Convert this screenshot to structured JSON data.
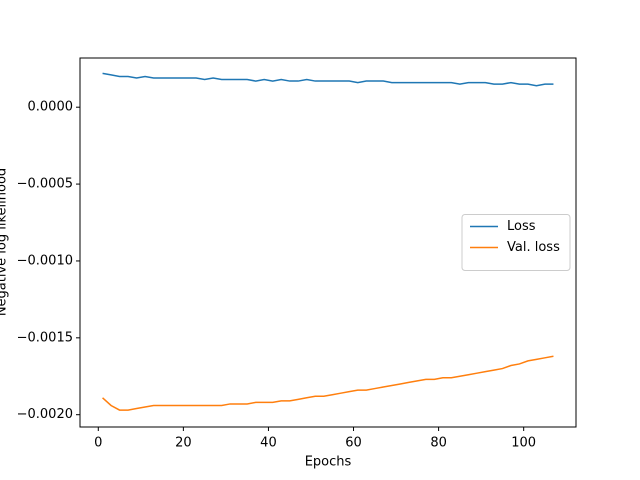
{
  "chart_data": {
    "type": "line",
    "xlabel": "Epochs",
    "ylabel": "Negative log likelihood",
    "x": [
      1,
      3,
      5,
      7,
      9,
      11,
      13,
      15,
      17,
      19,
      21,
      23,
      25,
      27,
      29,
      31,
      33,
      35,
      37,
      39,
      41,
      43,
      45,
      47,
      49,
      51,
      53,
      55,
      57,
      59,
      61,
      63,
      65,
      67,
      69,
      71,
      73,
      75,
      77,
      79,
      81,
      83,
      85,
      87,
      89,
      91,
      93,
      95,
      97,
      99,
      101,
      103,
      105,
      107
    ],
    "series": [
      {
        "name": "Loss",
        "color": "#1f77b4",
        "values": [
          0.00022,
          0.00021,
          0.0002,
          0.0002,
          0.00019,
          0.0002,
          0.00019,
          0.00019,
          0.00019,
          0.00019,
          0.00019,
          0.00019,
          0.00018,
          0.00019,
          0.00018,
          0.00018,
          0.00018,
          0.00018,
          0.00017,
          0.00018,
          0.00017,
          0.00018,
          0.00017,
          0.00017,
          0.00018,
          0.00017,
          0.00017,
          0.00017,
          0.00017,
          0.00017,
          0.00016,
          0.00017,
          0.00017,
          0.00017,
          0.00016,
          0.00016,
          0.00016,
          0.00016,
          0.00016,
          0.00016,
          0.00016,
          0.00016,
          0.00015,
          0.00016,
          0.00016,
          0.00016,
          0.00015,
          0.00015,
          0.00016,
          0.00015,
          0.00015,
          0.00014,
          0.00015,
          0.00015
        ]
      },
      {
        "name": "Val. loss",
        "color": "#ff7f0e",
        "values": [
          -0.00189,
          -0.00194,
          -0.00197,
          -0.00197,
          -0.00196,
          -0.00195,
          -0.00194,
          -0.00194,
          -0.00194,
          -0.00194,
          -0.00194,
          -0.00194,
          -0.00194,
          -0.00194,
          -0.00194,
          -0.00193,
          -0.00193,
          -0.00193,
          -0.00192,
          -0.00192,
          -0.00192,
          -0.00191,
          -0.00191,
          -0.0019,
          -0.00189,
          -0.00188,
          -0.00188,
          -0.00187,
          -0.00186,
          -0.00185,
          -0.00184,
          -0.00184,
          -0.00183,
          -0.00182,
          -0.00181,
          -0.0018,
          -0.00179,
          -0.00178,
          -0.00177,
          -0.00177,
          -0.00176,
          -0.00176,
          -0.00175,
          -0.00174,
          -0.00173,
          -0.00172,
          -0.00171,
          -0.0017,
          -0.00168,
          -0.00167,
          -0.00165,
          -0.00164,
          -0.00163,
          -0.00162
        ]
      }
    ],
    "xlim": [
      -4.3,
      112.3
    ],
    "xticks": [
      0,
      20,
      40,
      60,
      80,
      100
    ],
    "ylim": [
      -0.00208,
      0.00032
    ],
    "yticks": [
      {
        "value": 0,
        "label": "0.0000"
      },
      {
        "value": -0.0005,
        "label": "−0.0005"
      },
      {
        "value": -0.001,
        "label": "−0.0010"
      },
      {
        "value": -0.0015,
        "label": "−0.0015"
      },
      {
        "value": -0.002,
        "label": "−0.0020"
      }
    ],
    "legend": "center right"
  }
}
